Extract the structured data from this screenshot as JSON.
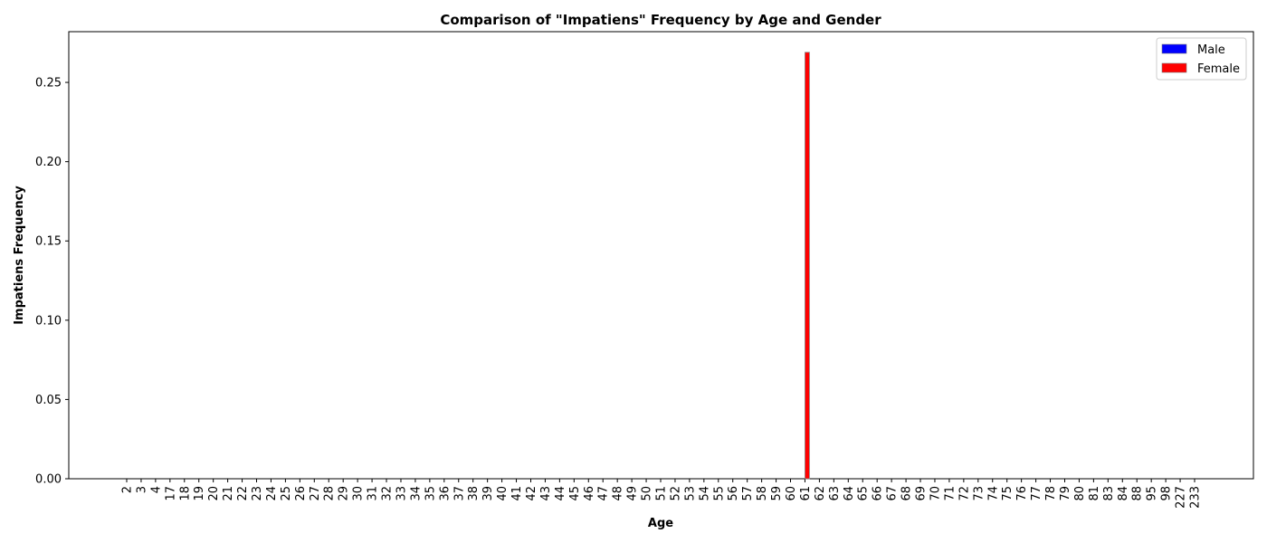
{
  "chart_data": {
    "type": "bar",
    "title": "Comparison of \"Impatiens\" Frequency by Age and Gender",
    "xlabel": "Age",
    "ylabel": "Impatiens Frequency",
    "ylim": [
      0,
      0.282
    ],
    "yticks": [
      "0.00",
      "0.05",
      "0.10",
      "0.15",
      "0.20",
      "0.25"
    ],
    "ytick_values": [
      0,
      0.05,
      0.1,
      0.15,
      0.2,
      0.25
    ],
    "categories": [
      "2",
      "3",
      "4",
      "17",
      "18",
      "19",
      "20",
      "21",
      "22",
      "23",
      "24",
      "25",
      "26",
      "27",
      "28",
      "29",
      "30",
      "31",
      "32",
      "33",
      "34",
      "35",
      "36",
      "37",
      "38",
      "39",
      "40",
      "41",
      "42",
      "43",
      "44",
      "45",
      "46",
      "47",
      "48",
      "49",
      "50",
      "51",
      "52",
      "53",
      "54",
      "55",
      "56",
      "57",
      "58",
      "59",
      "60",
      "61",
      "62",
      "63",
      "64",
      "65",
      "66",
      "67",
      "68",
      "69",
      "70",
      "71",
      "72",
      "73",
      "74",
      "75",
      "76",
      "77",
      "78",
      "79",
      "80",
      "81",
      "83",
      "84",
      "88",
      "95",
      "98",
      "227",
      "233"
    ],
    "series": [
      {
        "name": "Male",
        "color": "#0000ff",
        "values": [
          0,
          0,
          0,
          0,
          0,
          0,
          0,
          0,
          0,
          0,
          0,
          0,
          0,
          0,
          0,
          0,
          0,
          0,
          0,
          0,
          0,
          0,
          0,
          0,
          0,
          0,
          0,
          0,
          0,
          0,
          0,
          0,
          0,
          0,
          0,
          0,
          0,
          0,
          0,
          0,
          0,
          0,
          0,
          0,
          0,
          0,
          0,
          0,
          0,
          0,
          0,
          0,
          0,
          0,
          0,
          0,
          0,
          0,
          0,
          0,
          0,
          0,
          0,
          0,
          0,
          0,
          0,
          0,
          0,
          0,
          0,
          0,
          0,
          0,
          0
        ]
      },
      {
        "name": "Female",
        "color": "#ff0000",
        "values": [
          0,
          0,
          0,
          0,
          0,
          0,
          0,
          0,
          0,
          0,
          0,
          0,
          0,
          0,
          0,
          0,
          0,
          0,
          0,
          0,
          0,
          0,
          0,
          0,
          0,
          0,
          0,
          0,
          0,
          0,
          0,
          0,
          0,
          0,
          0,
          0,
          0,
          0,
          0,
          0,
          0,
          0,
          0,
          0,
          0,
          0,
          0,
          0.269,
          0,
          0,
          0,
          0,
          0,
          0,
          0,
          0,
          0,
          0,
          0,
          0,
          0,
          0,
          0,
          0,
          0,
          0,
          0,
          0,
          0,
          0,
          0,
          0,
          0,
          0,
          0
        ]
      }
    ],
    "legend_position": "top-right",
    "grid": false
  }
}
